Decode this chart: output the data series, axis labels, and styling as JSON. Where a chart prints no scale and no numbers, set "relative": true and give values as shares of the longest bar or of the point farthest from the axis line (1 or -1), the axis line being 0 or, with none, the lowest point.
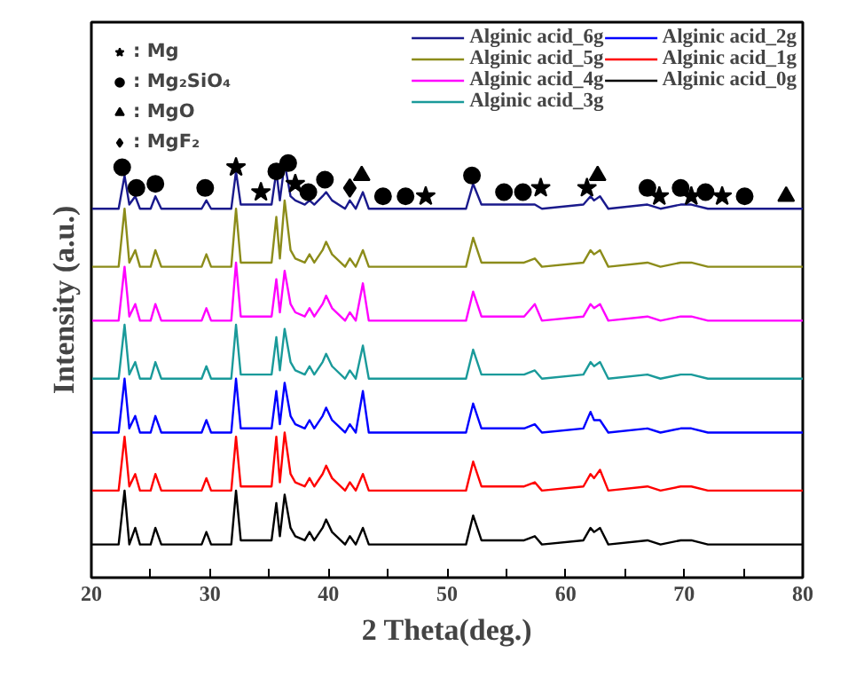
{
  "chart_data": {
    "type": "line",
    "relative": true,
    "xlabel": "2 Theta(deg.)",
    "ylabel": "Intensity (a.u.)",
    "xlim": [
      20,
      80
    ],
    "xticks": [
      20,
      {
        "value": 25,
        "label": null
      },
      30,
      {
        "value": 35,
        "label": null
      },
      40,
      {
        "value": 45,
        "label": null
      },
      50,
      {
        "value": 55,
        "label": null
      },
      60,
      {
        "value": 65,
        "label": null
      },
      70,
      {
        "value": 75,
        "label": null
      },
      80
    ],
    "tick_labels": "x",
    "grid": false,
    "legend": "top right",
    "marker": "none",
    "line_style": "solid",
    "x": [
      20,
      22.3,
      22.8,
      23.2,
      23.7,
      24.1,
      25.0,
      25.4,
      25.9,
      29.3,
      29.7,
      30.1,
      31.8,
      32.2,
      32.6,
      34.5,
      35.2,
      35.6,
      35.9,
      36.3,
      36.8,
      37.2,
      38.0,
      38.4,
      38.8,
      39.5,
      39.8,
      40.3,
      41.4,
      41.8,
      42.3,
      42.9,
      43.4,
      45.0,
      47.6,
      51.6,
      52.2,
      52.9,
      55.0,
      56.5,
      57.4,
      58.0,
      61.5,
      62.1,
      62.4,
      62.9,
      63.6,
      66.9,
      68.0,
      69.7,
      70.6,
      72.0,
      78.2,
      80
    ],
    "series": [
      {
        "name": "Alginic acid_6g",
        "color": "#1a1a8c",
        "values": [
          0.89,
          0.89,
          0.97,
          0.9,
          0.92,
          0.89,
          0.89,
          0.92,
          0.89,
          0.89,
          0.91,
          0.89,
          0.89,
          0.98,
          0.9,
          0.9,
          0.9,
          0.98,
          0.91,
          1,
          0.92,
          0.91,
          0.9,
          0.91,
          0.9,
          0.92,
          0.93,
          0.91,
          0.89,
          0.91,
          0.89,
          0.93,
          0.89,
          0.89,
          0.89,
          0.89,
          0.95,
          0.9,
          0.9,
          0.9,
          0.9,
          0.89,
          0.9,
          0.92,
          0.91,
          0.92,
          0.89,
          0.9,
          0.89,
          0.9,
          0.9,
          0.89,
          0.89,
          0.89
        ]
      },
      {
        "name": "Alginic acid_5g",
        "color": "#8c8c1a",
        "values": [
          0.75,
          0.75,
          0.89,
          0.76,
          0.79,
          0.75,
          0.75,
          0.79,
          0.75,
          0.75,
          0.78,
          0.75,
          0.75,
          0.89,
          0.76,
          0.76,
          0.76,
          0.87,
          0.77,
          0.91,
          0.79,
          0.77,
          0.76,
          0.78,
          0.76,
          0.79,
          0.81,
          0.78,
          0.75,
          0.77,
          0.75,
          0.79,
          0.75,
          0.75,
          0.75,
          0.75,
          0.82,
          0.76,
          0.76,
          0.76,
          0.77,
          0.75,
          0.76,
          0.79,
          0.78,
          0.79,
          0.75,
          0.76,
          0.75,
          0.76,
          0.76,
          0.75,
          0.75,
          0.75
        ]
      },
      {
        "name": "Alginic acid_4g",
        "color": "#ff00ff",
        "values": [
          0.62,
          0.62,
          0.75,
          0.63,
          0.66,
          0.62,
          0.62,
          0.66,
          0.62,
          0.62,
          0.65,
          0.62,
          0.62,
          0.76,
          0.63,
          0.63,
          0.63,
          0.72,
          0.64,
          0.74,
          0.66,
          0.64,
          0.63,
          0.65,
          0.63,
          0.66,
          0.68,
          0.65,
          0.62,
          0.64,
          0.62,
          0.71,
          0.62,
          0.62,
          0.62,
          0.62,
          0.69,
          0.63,
          0.63,
          0.63,
          0.66,
          0.62,
          0.63,
          0.66,
          0.65,
          0.66,
          0.62,
          0.63,
          0.62,
          0.63,
          0.63,
          0.62,
          0.62,
          0.62
        ]
      },
      {
        "name": "Alginic acid_3g",
        "color": "#1a9a9a",
        "values": [
          0.48,
          0.48,
          0.61,
          0.49,
          0.52,
          0.48,
          0.48,
          0.52,
          0.48,
          0.48,
          0.51,
          0.48,
          0.48,
          0.61,
          0.49,
          0.49,
          0.49,
          0.58,
          0.5,
          0.6,
          0.52,
          0.5,
          0.49,
          0.51,
          0.49,
          0.52,
          0.54,
          0.51,
          0.48,
          0.5,
          0.48,
          0.56,
          0.48,
          0.48,
          0.48,
          0.48,
          0.55,
          0.49,
          0.49,
          0.49,
          0.5,
          0.48,
          0.49,
          0.52,
          0.51,
          0.52,
          0.48,
          0.49,
          0.48,
          0.49,
          0.49,
          0.48,
          0.48,
          0.48
        ]
      },
      {
        "name": "Alginic acid_2g",
        "color": "#0000ff",
        "values": [
          0.35,
          0.35,
          0.48,
          0.36,
          0.39,
          0.35,
          0.35,
          0.39,
          0.35,
          0.35,
          0.38,
          0.35,
          0.35,
          0.48,
          0.36,
          0.36,
          0.36,
          0.45,
          0.37,
          0.47,
          0.39,
          0.37,
          0.36,
          0.38,
          0.36,
          0.39,
          0.41,
          0.38,
          0.35,
          0.37,
          0.35,
          0.45,
          0.35,
          0.35,
          0.35,
          0.35,
          0.42,
          0.36,
          0.36,
          0.36,
          0.37,
          0.35,
          0.36,
          0.4,
          0.38,
          0.38,
          0.35,
          0.36,
          0.35,
          0.36,
          0.36,
          0.35,
          0.35,
          0.35
        ]
      },
      {
        "name": "Alginic acid_1g",
        "color": "#ff0000",
        "values": [
          0.21,
          0.21,
          0.34,
          0.22,
          0.25,
          0.21,
          0.21,
          0.25,
          0.21,
          0.21,
          0.24,
          0.21,
          0.21,
          0.34,
          0.22,
          0.22,
          0.22,
          0.34,
          0.23,
          0.35,
          0.25,
          0.23,
          0.22,
          0.24,
          0.22,
          0.25,
          0.27,
          0.24,
          0.21,
          0.23,
          0.21,
          0.25,
          0.21,
          0.21,
          0.21,
          0.21,
          0.28,
          0.22,
          0.22,
          0.22,
          0.23,
          0.21,
          0.22,
          0.25,
          0.24,
          0.26,
          0.21,
          0.22,
          0.21,
          0.22,
          0.22,
          0.21,
          0.21,
          0.21
        ]
      },
      {
        "name": "Alginic acid_0g",
        "color": "#000000",
        "values": [
          0.08,
          0.08,
          0.21,
          0.08,
          0.12,
          0.08,
          0.08,
          0.12,
          0.08,
          0.08,
          0.11,
          0.08,
          0.08,
          0.21,
          0.09,
          0.09,
          0.09,
          0.18,
          0.1,
          0.2,
          0.12,
          0.1,
          0.09,
          0.11,
          0.09,
          0.12,
          0.14,
          0.11,
          0.08,
          0.1,
          0.08,
          0.12,
          0.08,
          0.08,
          0.08,
          0.08,
          0.15,
          0.09,
          0.09,
          0.09,
          0.1,
          0.08,
          0.09,
          0.12,
          0.11,
          0.12,
          0.08,
          0.09,
          0.08,
          0.09,
          0.09,
          0.08,
          0.08,
          0.08
        ]
      },
      {
        "name": ": Mg",
        "type": "scatter",
        "marker": "star",
        "color": "#000000",
        "x": [
          32.2,
          34.3,
          37.2,
          48.2,
          57.9,
          61.8,
          67.9,
          70.6,
          73.2
        ],
        "values": [
          0.99,
          0.93,
          0.95,
          0.92,
          0.94,
          0.94,
          0.92,
          0.92,
          0.92
        ]
      },
      {
        "name": ": Mg₂SiO₄",
        "type": "scatter",
        "marker": "circle",
        "color": "#000000",
        "x": [
          22.6,
          23.8,
          25.4,
          29.6,
          35.6,
          36.6,
          38.3,
          39.7,
          44.6,
          46.5,
          52.1,
          54.8,
          56.4,
          66.9,
          69.7,
          71.8,
          75.1
        ],
        "values": [
          0.99,
          0.94,
          0.95,
          0.94,
          0.98,
          1.0,
          0.93,
          0.96,
          0.92,
          0.92,
          0.97,
          0.93,
          0.93,
          0.94,
          0.94,
          0.93,
          0.92
        ]
      },
      {
        "name": ": MgO",
        "type": "scatter",
        "marker": "triangle",
        "color": "#000000",
        "x": [
          42.8,
          62.7,
          78.6
        ],
        "values": [
          0.97,
          0.97,
          0.92
        ]
      },
      {
        "name": ": MgF₂",
        "type": "scatter",
        "marker": "diamond",
        "color": "#000000",
        "x": [
          41.8
        ],
        "values": [
          0.94
        ]
      }
    ]
  }
}
